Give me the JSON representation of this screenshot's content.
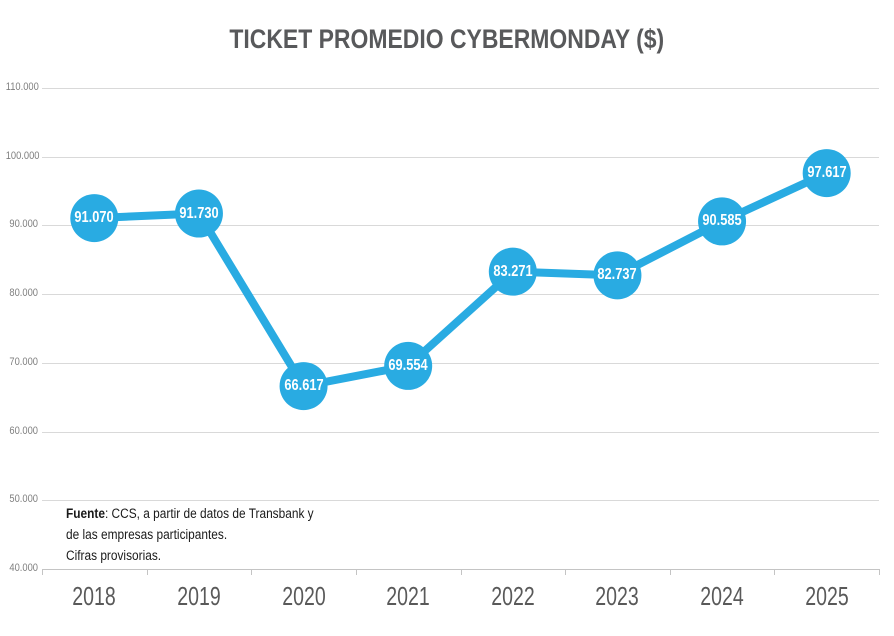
{
  "chart_data": {
    "type": "line",
    "title": "TICKET PROMEDIO CYBERMONDAY ($)",
    "categories": [
      "2018",
      "2019",
      "2020",
      "2021",
      "2022",
      "2023",
      "2024",
      "2025"
    ],
    "series": [
      {
        "name": "Ticket promedio CyberMonday ($)",
        "values": [
          91070,
          91730,
          66617,
          69554,
          83271,
          82737,
          90585,
          97617
        ],
        "labels": [
          "91.070",
          "91.730",
          "66.617",
          "69.554",
          "83.271",
          "82.737",
          "90.585",
          "97.617"
        ]
      }
    ],
    "xlabel": "",
    "ylabel": "",
    "ylim": [
      40000,
      110000
    ],
    "y_ticks": [
      {
        "value": 110000,
        "label": "110.000"
      },
      {
        "value": 100000,
        "label": "100.000"
      },
      {
        "value": 90000,
        "label": "90.000"
      },
      {
        "value": 80000,
        "label": "80.000"
      },
      {
        "value": 70000,
        "label": "70.000"
      },
      {
        "value": 60000,
        "label": "60.000"
      },
      {
        "value": 50000,
        "label": "50.000"
      },
      {
        "value": 40000,
        "label": "40.000"
      }
    ],
    "grid": "horizontal",
    "legend": "none",
    "marker": "filled-circle-with-value-label"
  },
  "source_note": {
    "lines": [
      {
        "bold": "Fuente",
        "text": ": CCS, a partir de datos de Transbank y"
      },
      {
        "bold": "",
        "text": "de las empresas participantes."
      },
      {
        "bold": "",
        "text": "Cifras provisorias."
      }
    ]
  },
  "colors": {
    "accent": "#29ABE2",
    "marker_label": "#FFFFFF",
    "grid": "#D9D9D9",
    "axis": "#C4C4C4",
    "title_text": "#58595B",
    "ytick_text": "#7F7F7F",
    "year_text": "#595959",
    "note_text": "#1A1A1A",
    "background": "#FFFFFF"
  }
}
